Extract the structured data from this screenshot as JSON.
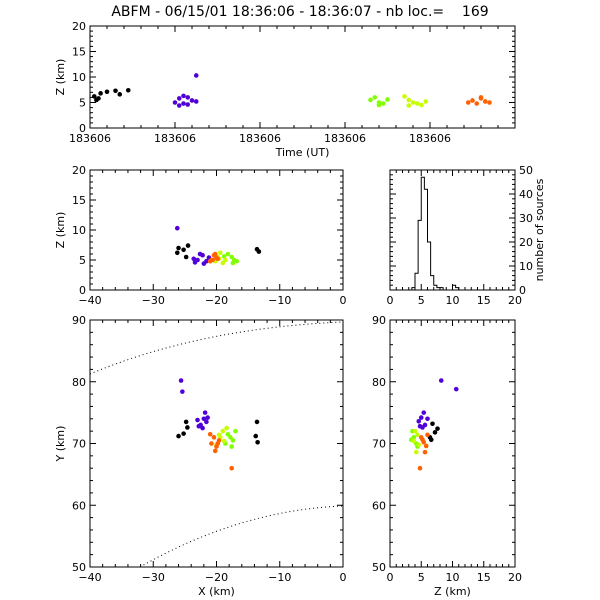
{
  "chart_data": [
    {
      "id": "time",
      "type": "scatter",
      "title": "ABFM - 06/15/01 18:36:06 - 18:36:07 - nb loc.=    169",
      "xlabel": "Time (UT)",
      "ylabel": "Z (km)",
      "xlim": [
        0,
        1
      ],
      "ylim": [
        0,
        20
      ],
      "xticks": [
        0,
        0.2,
        0.4,
        0.6,
        0.8
      ],
      "xtick_labels": [
        "183606",
        "183606",
        "183606",
        "183606",
        "183606"
      ],
      "yticks": [
        0,
        5,
        10,
        15,
        20
      ],
      "ytick_labels": [
        "0",
        "5",
        "10",
        "15",
        "20"
      ],
      "series": [
        {
          "color": "#000000",
          "points": [
            [
              0.01,
              6.2
            ],
            [
              0.02,
              5.8
            ],
            [
              0.025,
              6.8
            ],
            [
              0.04,
              7.1
            ],
            [
              0.06,
              7.3
            ],
            [
              0.07,
              6.6
            ],
            [
              0.09,
              7.4
            ],
            [
              0.015,
              5.5
            ]
          ]
        },
        {
          "color": "#5000d8",
          "points": [
            [
              0.2,
              5.0
            ],
            [
              0.21,
              5.8
            ],
            [
              0.22,
              4.8
            ],
            [
              0.23,
              6.0
            ],
            [
              0.24,
              5.4
            ],
            [
              0.25,
              5.2
            ],
            [
              0.22,
              6.3
            ],
            [
              0.25,
              10.3
            ],
            [
              0.21,
              4.4
            ],
            [
              0.23,
              4.6
            ]
          ]
        },
        {
          "color": "#80ff00",
          "points": [
            [
              0.66,
              5.5
            ],
            [
              0.67,
              6.0
            ],
            [
              0.68,
              5.0
            ],
            [
              0.69,
              4.8
            ],
            [
              0.7,
              5.6
            ],
            [
              0.68,
              4.5
            ]
          ]
        },
        {
          "color": "#c8ff00",
          "points": [
            [
              0.74,
              6.2
            ],
            [
              0.75,
              5.5
            ],
            [
              0.76,
              5.0
            ],
            [
              0.77,
              4.8
            ],
            [
              0.78,
              4.5
            ],
            [
              0.79,
              5.2
            ],
            [
              0.75,
              4.4
            ]
          ]
        },
        {
          "color": "#ff6000",
          "points": [
            [
              0.89,
              5.0
            ],
            [
              0.9,
              5.4
            ],
            [
              0.91,
              4.8
            ],
            [
              0.92,
              5.8
            ],
            [
              0.93,
              5.2
            ],
            [
              0.94,
              5.0
            ],
            [
              0.92,
              6.0
            ]
          ]
        }
      ]
    },
    {
      "id": "xz",
      "type": "scatter",
      "xlabel": "",
      "ylabel": "Z (km)",
      "xlim": [
        -40,
        0
      ],
      "ylim": [
        0,
        20
      ],
      "xticks": [
        -40,
        -30,
        -20,
        -10,
        0
      ],
      "xtick_labels": [
        "−40",
        "−30",
        "−20",
        "−10",
        "0"
      ],
      "yticks": [
        0,
        5,
        10,
        15,
        20
      ],
      "ytick_labels": [
        "0",
        "5",
        "10",
        "15",
        "20"
      ],
      "series": [
        {
          "color": "#000000",
          "points": [
            [
              -25.2,
              6.7
            ],
            [
              -24.8,
              5.5
            ],
            [
              -26.2,
              6.2
            ],
            [
              -24.5,
              7.4
            ],
            [
              -26.0,
              7.0
            ],
            [
              -13.6,
              6.8
            ],
            [
              -13.3,
              6.4
            ]
          ]
        },
        {
          "color": "#5000d8",
          "points": [
            [
              -23.0,
              5.0
            ],
            [
              -22.2,
              5.8
            ],
            [
              -21.6,
              4.8
            ],
            [
              -22.6,
              6.0
            ],
            [
              -21.2,
              5.4
            ],
            [
              -23.6,
              5.2
            ],
            [
              -26.2,
              10.3
            ],
            [
              -22.0,
              4.4
            ],
            [
              -23.4,
              4.6
            ]
          ]
        },
        {
          "color": "#80ff00",
          "points": [
            [
              -17.6,
              5.5
            ],
            [
              -18.2,
              6.0
            ],
            [
              -17.2,
              5.0
            ],
            [
              -16.8,
              4.8
            ],
            [
              -18.8,
              5.6
            ],
            [
              -17.4,
              4.5
            ]
          ]
        },
        {
          "color": "#c8ff00",
          "points": [
            [
              -19.4,
              6.2
            ],
            [
              -19.8,
              5.5
            ],
            [
              -18.6,
              5.0
            ],
            [
              -20.2,
              4.8
            ],
            [
              -19.0,
              4.5
            ],
            [
              -19.6,
              5.2
            ]
          ]
        },
        {
          "color": "#ff6000",
          "points": [
            [
              -20.6,
              5.0
            ],
            [
              -20.0,
              5.4
            ],
            [
              -21.0,
              4.8
            ],
            [
              -20.4,
              5.8
            ],
            [
              -19.8,
              5.2
            ],
            [
              -20.8,
              5.0
            ],
            [
              -20.2,
              6.0
            ]
          ]
        }
      ]
    },
    {
      "id": "hist",
      "type": "line",
      "xlabel": "",
      "ylabel": "number of sources",
      "xlim": [
        0,
        20
      ],
      "ylim": [
        0,
        50
      ],
      "xticks": [
        0,
        5,
        10,
        15,
        20
      ],
      "xtick_labels": [
        "0",
        "5",
        "10",
        "15",
        "20"
      ],
      "yticks": [
        0,
        10,
        20,
        30,
        40,
        50
      ],
      "ytick_labels": [
        "0",
        "10",
        "20",
        "30",
        "40",
        "50"
      ],
      "x": [
        0,
        0.5,
        1,
        1.5,
        2,
        2.5,
        3,
        3.5,
        4,
        4.5,
        5,
        5.5,
        6,
        6.5,
        7,
        7.5,
        8,
        8.5,
        9,
        9.5,
        10,
        10.5,
        11,
        11.5,
        12,
        12.5,
        13,
        13.5,
        14,
        14.5,
        15,
        15.5,
        16,
        16.5,
        17,
        17.5,
        18,
        18.5,
        19,
        19.5
      ],
      "values": [
        0,
        0,
        0,
        0,
        0,
        0,
        0,
        1,
        7,
        29,
        47,
        42,
        20,
        6,
        2,
        1,
        1,
        0,
        0,
        0,
        2,
        1,
        0,
        0,
        0,
        0,
        0,
        0,
        0,
        0,
        0,
        0,
        0,
        0,
        0,
        0,
        0,
        0,
        0,
        0
      ]
    },
    {
      "id": "xy",
      "type": "scatter",
      "xlabel": "X (km)",
      "ylabel": "Y (km)",
      "xlim": [
        -40,
        0
      ],
      "ylim": [
        50,
        90
      ],
      "xticks": [
        -40,
        -30,
        -20,
        -10,
        0
      ],
      "xtick_labels": [
        "−40",
        "−30",
        "−20",
        "−10",
        "0"
      ],
      "yticks": [
        50,
        60,
        70,
        80,
        90
      ],
      "ytick_labels": [
        "50",
        "60",
        "70",
        "80",
        "90"
      ],
      "series": [
        {
          "color": "#000000",
          "points": [
            [
              -24.8,
              73.5
            ],
            [
              -25.2,
              71.6
            ],
            [
              -26.0,
              71.2
            ],
            [
              -24.6,
              72.6
            ],
            [
              -13.6,
              73.5
            ],
            [
              -13.8,
              71.2
            ],
            [
              -13.5,
              70.2
            ]
          ]
        },
        {
          "color": "#5000d8",
          "points": [
            [
              -22.5,
              73.0
            ],
            [
              -22.0,
              74.0
            ],
            [
              -21.6,
              73.5
            ],
            [
              -22.2,
              72.5
            ],
            [
              -21.4,
              74.2
            ],
            [
              -23.0,
              73.8
            ],
            [
              -25.6,
              80.2
            ],
            [
              -25.4,
              78.4
            ],
            [
              -21.8,
              75.0
            ],
            [
              -22.8,
              72.8
            ]
          ]
        },
        {
          "color": "#80ff00",
          "points": [
            [
              -17.8,
              71.0
            ],
            [
              -18.2,
              71.5
            ],
            [
              -17.4,
              70.5
            ],
            [
              -17.0,
              72.0
            ],
            [
              -18.6,
              70.0
            ],
            [
              -17.6,
              69.5
            ]
          ]
        },
        {
          "color": "#c8ff00",
          "points": [
            [
              -19.0,
              72.0
            ],
            [
              -19.6,
              71.4
            ],
            [
              -18.8,
              70.4
            ],
            [
              -20.0,
              69.8
            ],
            [
              -18.4,
              72.5
            ],
            [
              -19.4,
              71.0
            ]
          ]
        },
        {
          "color": "#ff6000",
          "points": [
            [
              -20.4,
              71.0
            ],
            [
              -20.8,
              70.0
            ],
            [
              -20.0,
              69.5
            ],
            [
              -19.6,
              70.5
            ],
            [
              -21.0,
              71.5
            ],
            [
              -20.2,
              68.8
            ],
            [
              -19.8,
              70.0
            ],
            [
              -17.6,
              66.0
            ]
          ]
        }
      ]
    },
    {
      "id": "zy",
      "type": "scatter",
      "xlabel": "Z (km)",
      "ylabel": "",
      "xlim": [
        0,
        20
      ],
      "ylim": [
        50,
        90
      ],
      "xticks": [
        0,
        5,
        10,
        15,
        20
      ],
      "xtick_labels": [
        "0",
        "5",
        "10",
        "15",
        "20"
      ],
      "yticks": [
        50,
        60,
        70,
        80,
        90
      ],
      "ytick_labels": [
        "50",
        "60",
        "70",
        "80",
        "90"
      ],
      "series": [
        {
          "color": "#000000",
          "points": [
            [
              6.8,
              73.2
            ],
            [
              7.2,
              71.8
            ],
            [
              6.4,
              71.0
            ],
            [
              7.6,
              72.4
            ],
            [
              6.6,
              70.6
            ]
          ]
        },
        {
          "color": "#5000d8",
          "points": [
            [
              4.6,
              73.6
            ],
            [
              5.0,
              74.2
            ],
            [
              5.6,
              73.0
            ],
            [
              5.2,
              72.6
            ],
            [
              6.0,
              74.0
            ],
            [
              4.8,
              72.8
            ],
            [
              8.2,
              80.2
            ],
            [
              10.6,
              78.8
            ],
            [
              5.4,
              75.0
            ]
          ]
        },
        {
          "color": "#80ff00",
          "points": [
            [
              3.8,
              71.0
            ],
            [
              4.2,
              70.0
            ],
            [
              3.6,
              72.0
            ],
            [
              4.4,
              69.5
            ],
            [
              3.4,
              70.6
            ]
          ]
        },
        {
          "color": "#c8ff00",
          "points": [
            [
              4.0,
              72.0
            ],
            [
              4.4,
              71.4
            ],
            [
              3.8,
              70.4
            ],
            [
              4.6,
              69.8
            ],
            [
              4.2,
              68.6
            ]
          ]
        },
        {
          "color": "#ff6000",
          "points": [
            [
              5.0,
              71.0
            ],
            [
              5.4,
              70.2
            ],
            [
              5.8,
              69.6
            ],
            [
              5.2,
              70.6
            ],
            [
              6.0,
              71.4
            ],
            [
              5.6,
              68.6
            ],
            [
              4.8,
              66.0
            ]
          ]
        }
      ]
    }
  ]
}
